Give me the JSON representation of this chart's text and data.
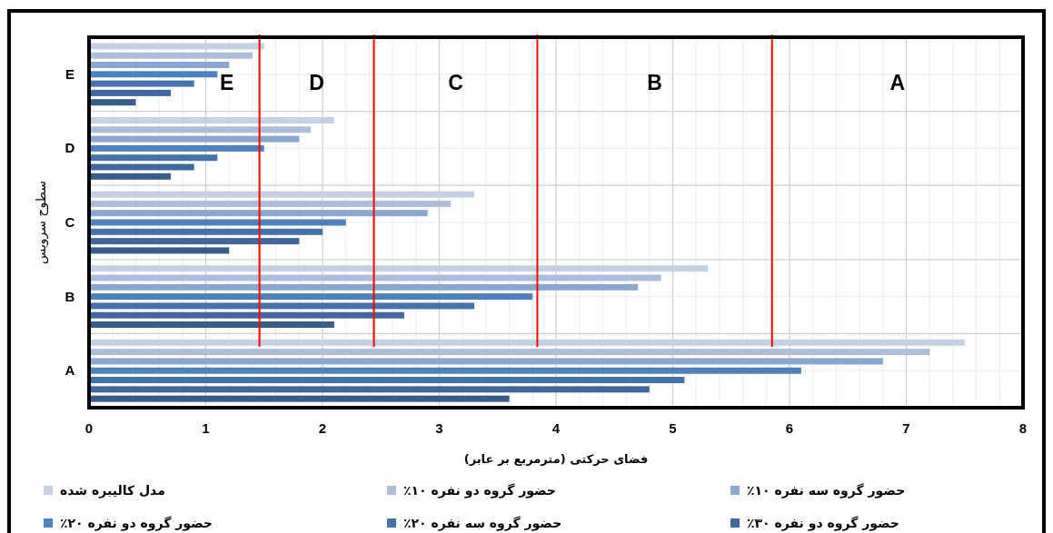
{
  "chart_data": {
    "type": "bar",
    "orientation": "horizontal",
    "categories": [
      "E",
      "D",
      "C",
      "B",
      "A"
    ],
    "xlabel": "فضای حرکتی (مترمربع بر عابر)",
    "ylabel": "سطوح سرویس",
    "series": [
      {
        "name": "مدل کالیبره شده",
        "color": "#c5d0e3",
        "values": [
          1.5,
          2.1,
          3.3,
          5.3,
          7.5
        ]
      },
      {
        "name": "حضور گروه دو نفره ۱۰٪",
        "color": "#aebdda",
        "values": [
          1.4,
          1.9,
          3.1,
          4.9,
          7.2
        ]
      },
      {
        "name": "حضور گروه سه نفره ۱۰٪",
        "color": "#8ba6cf",
        "values": [
          1.2,
          1.8,
          2.9,
          4.7,
          6.8
        ]
      },
      {
        "name": "حضور گروه دو نفره ۲۰٪",
        "color": "#4f81bd",
        "values": [
          1.1,
          1.5,
          2.2,
          3.8,
          6.1
        ]
      },
      {
        "name": "حضور گروه سه نفره ۲۰٪",
        "color": "#4672ab",
        "values": [
          0.9,
          1.1,
          2.0,
          3.3,
          5.1
        ]
      },
      {
        "name": "حضور گروه دو نفره ۳۰٪",
        "color": "#40679e",
        "values": [
          0.7,
          0.9,
          1.8,
          2.7,
          4.8
        ]
      },
      {
        "color": "#385d8a",
        "values": [
          0.4,
          0.7,
          1.2,
          2.1,
          3.6
        ]
      }
    ],
    "xlim": [
      0,
      8
    ],
    "xticks": [
      0,
      1,
      2,
      3,
      4,
      5,
      6,
      7,
      8
    ],
    "grid": true,
    "legend": "bottom",
    "ref_lines": [
      {
        "axis": "x",
        "value": 1.46,
        "color": "#ff0000"
      },
      {
        "axis": "x",
        "value": 2.44,
        "color": "#ff0000"
      },
      {
        "axis": "x",
        "value": 3.84,
        "color": "#ff0000"
      },
      {
        "axis": "x",
        "value": 5.85,
        "color": "#ff0000"
      }
    ],
    "annotations": [
      "E",
      "D",
      "C",
      "B",
      "A"
    ]
  }
}
